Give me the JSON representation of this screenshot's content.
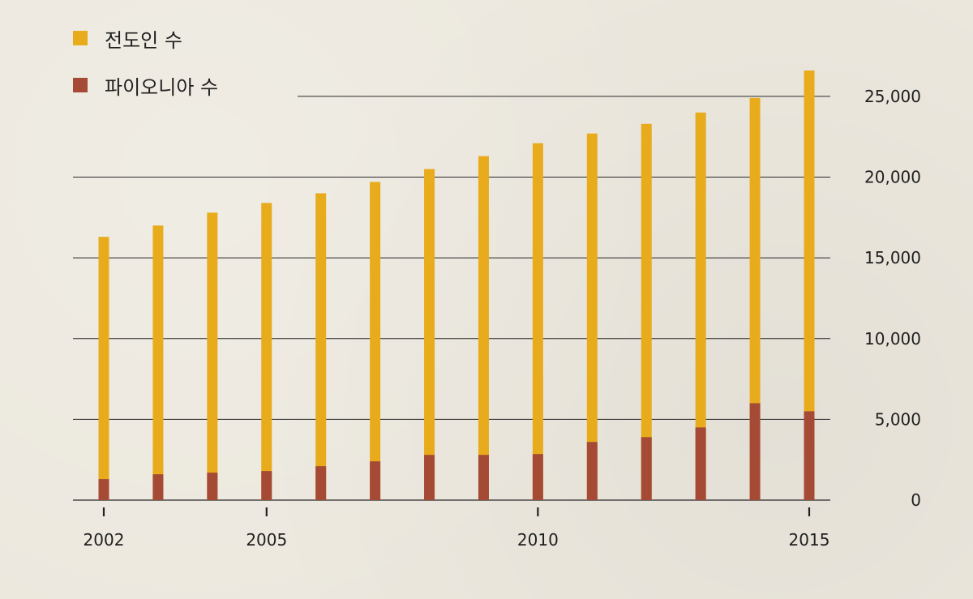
{
  "chart_data": {
    "type": "bar",
    "stacked": false,
    "overlay": true,
    "legend_position": "top-left",
    "grid": true,
    "x": [
      2002,
      2003,
      2004,
      2005,
      2006,
      2007,
      2008,
      2009,
      2010,
      2011,
      2012,
      2013,
      2014,
      2015
    ],
    "series": [
      {
        "name": "전도인 수",
        "color": "#e8ab1c",
        "values": [
          16300,
          17000,
          17800,
          18400,
          19000,
          19700,
          20500,
          21300,
          22100,
          22700,
          23300,
          24000,
          24900,
          26600
        ]
      },
      {
        "name": "파이오니아 수",
        "color": "#a54a34",
        "values": [
          1300,
          1600,
          1700,
          1800,
          2100,
          2400,
          2800,
          2800,
          2850,
          3600,
          3900,
          4500,
          6000,
          5500
        ]
      }
    ],
    "ylim": [
      0,
      26600
    ],
    "y_ticks": [
      0,
      5000,
      10000,
      15000,
      20000,
      25000
    ],
    "y_tick_labels": [
      "0",
      "5,000",
      "10,000",
      "15,000",
      "20,000",
      "25,000"
    ],
    "x_ticks": [
      2002,
      2005,
      2010,
      2015
    ],
    "x_tick_labels": [
      "2002",
      "2005",
      "2010",
      "2015"
    ],
    "y_axis_side": "right"
  }
}
